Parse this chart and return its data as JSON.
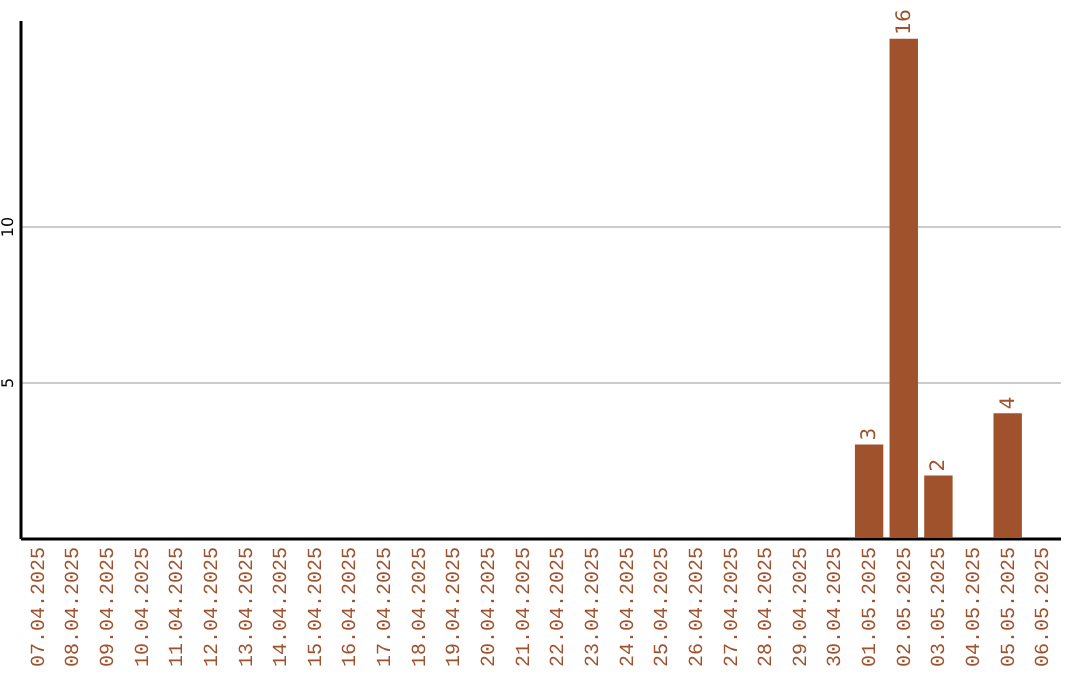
{
  "chart_data": {
    "type": "bar",
    "categories": [
      "07.04.2025",
      "08.04.2025",
      "09.04.2025",
      "10.04.2025",
      "11.04.2025",
      "12.04.2025",
      "13.04.2025",
      "14.04.2025",
      "15.04.2025",
      "16.04.2025",
      "17.04.2025",
      "18.04.2025",
      "19.04.2025",
      "20.04.2025",
      "21.04.2025",
      "22.04.2025",
      "23.04.2025",
      "24.04.2025",
      "25.04.2025",
      "26.04.2025",
      "27.04.2025",
      "28.04.2025",
      "29.04.2025",
      "30.04.2025",
      "01.05.2025",
      "02.05.2025",
      "03.05.2025",
      "04.05.2025",
      "05.05.2025",
      "06.05.2025"
    ],
    "values": [
      0,
      0,
      0,
      0,
      0,
      0,
      0,
      0,
      0,
      0,
      0,
      0,
      0,
      0,
      0,
      0,
      0,
      0,
      0,
      0,
      0,
      0,
      0,
      0,
      3,
      16,
      2,
      0,
      4,
      0
    ],
    "value_labels": [
      null,
      null,
      null,
      null,
      null,
      null,
      null,
      null,
      null,
      null,
      null,
      null,
      null,
      null,
      null,
      null,
      null,
      null,
      null,
      null,
      null,
      null,
      null,
      null,
      "3",
      "16",
      "2",
      null,
      "4",
      null
    ],
    "color": "#a0522d",
    "ylim": [
      0,
      16.6
    ],
    "yticks": [
      5,
      10
    ],
    "grid": "y"
  }
}
